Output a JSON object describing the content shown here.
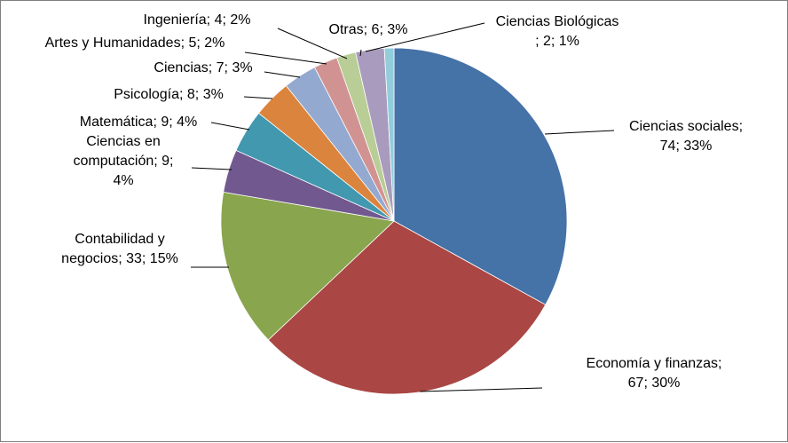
{
  "chart_data": {
    "type": "pie",
    "title": "",
    "series": [
      {
        "values": [
          74,
          67,
          33,
          9,
          9,
          8,
          7,
          5,
          4,
          6,
          2
        ]
      }
    ],
    "categories": [
      "Ciencias sociales",
      "Economía y finanzas",
      "Contabilidad y negocios",
      "Ciencias en computación",
      "Matemática",
      "Psicología",
      "Ciencias",
      "Artes y Humanidades",
      "Ingeniería",
      "Otras",
      "Ciencias Biológicas"
    ],
    "slices": [
      {
        "label": "Ciencias sociales",
        "value": 74,
        "percent": 33,
        "color": "#4572A7",
        "label_lines": [
          "Ciencias sociales;",
          "74; 33%"
        ]
      },
      {
        "label": "Economía y finanzas",
        "value": 67,
        "percent": 30,
        "color": "#AA4643",
        "label_lines": [
          "Economía y finanzas;",
          "67; 30%"
        ]
      },
      {
        "label": "Contabilidad y negocios",
        "value": 33,
        "percent": 15,
        "color": "#89A54E",
        "label_lines": [
          "Contabilidad y",
          "negocios; 33; 15%"
        ]
      },
      {
        "label": "Ciencias en computación",
        "value": 9,
        "percent": 4,
        "color": "#71588F",
        "label_lines": [
          "Ciencias en",
          "computación; 9;",
          "4%"
        ]
      },
      {
        "label": "Matemática",
        "value": 9,
        "percent": 4,
        "color": "#4198AF",
        "label_lines": [
          "Matemática; 9; 4%"
        ]
      },
      {
        "label": "Psicología",
        "value": 8,
        "percent": 3,
        "color": "#DB843D",
        "label_lines": [
          "Psicología; 8; 3%"
        ]
      },
      {
        "label": "Ciencias",
        "value": 7,
        "percent": 3,
        "color": "#93A9CF",
        "label_lines": [
          "Ciencias; 7; 3%"
        ]
      },
      {
        "label": "Artes y Humanidades",
        "value": 5,
        "percent": 2,
        "color": "#D19392",
        "label_lines": [
          "Artes y Humanidades; 5; 2%"
        ]
      },
      {
        "label": "Ingeniería",
        "value": 4,
        "percent": 2,
        "color": "#B9CD96",
        "label_lines": [
          "Ingeniería; 4; 2%"
        ]
      },
      {
        "label": "Otras",
        "value": 6,
        "percent": 3,
        "color": "#A99BBD",
        "label_lines": [
          "Otras; 6; 3%"
        ]
      },
      {
        "label": "Ciencias Biológicas",
        "value": 2,
        "percent": 1,
        "color": "#92CDDC",
        "label_lines": [
          "Ciencias Biológicas",
          "; 2; 1%"
        ]
      }
    ],
    "legend": "none",
    "data_labels": "category; value; percent"
  }
}
